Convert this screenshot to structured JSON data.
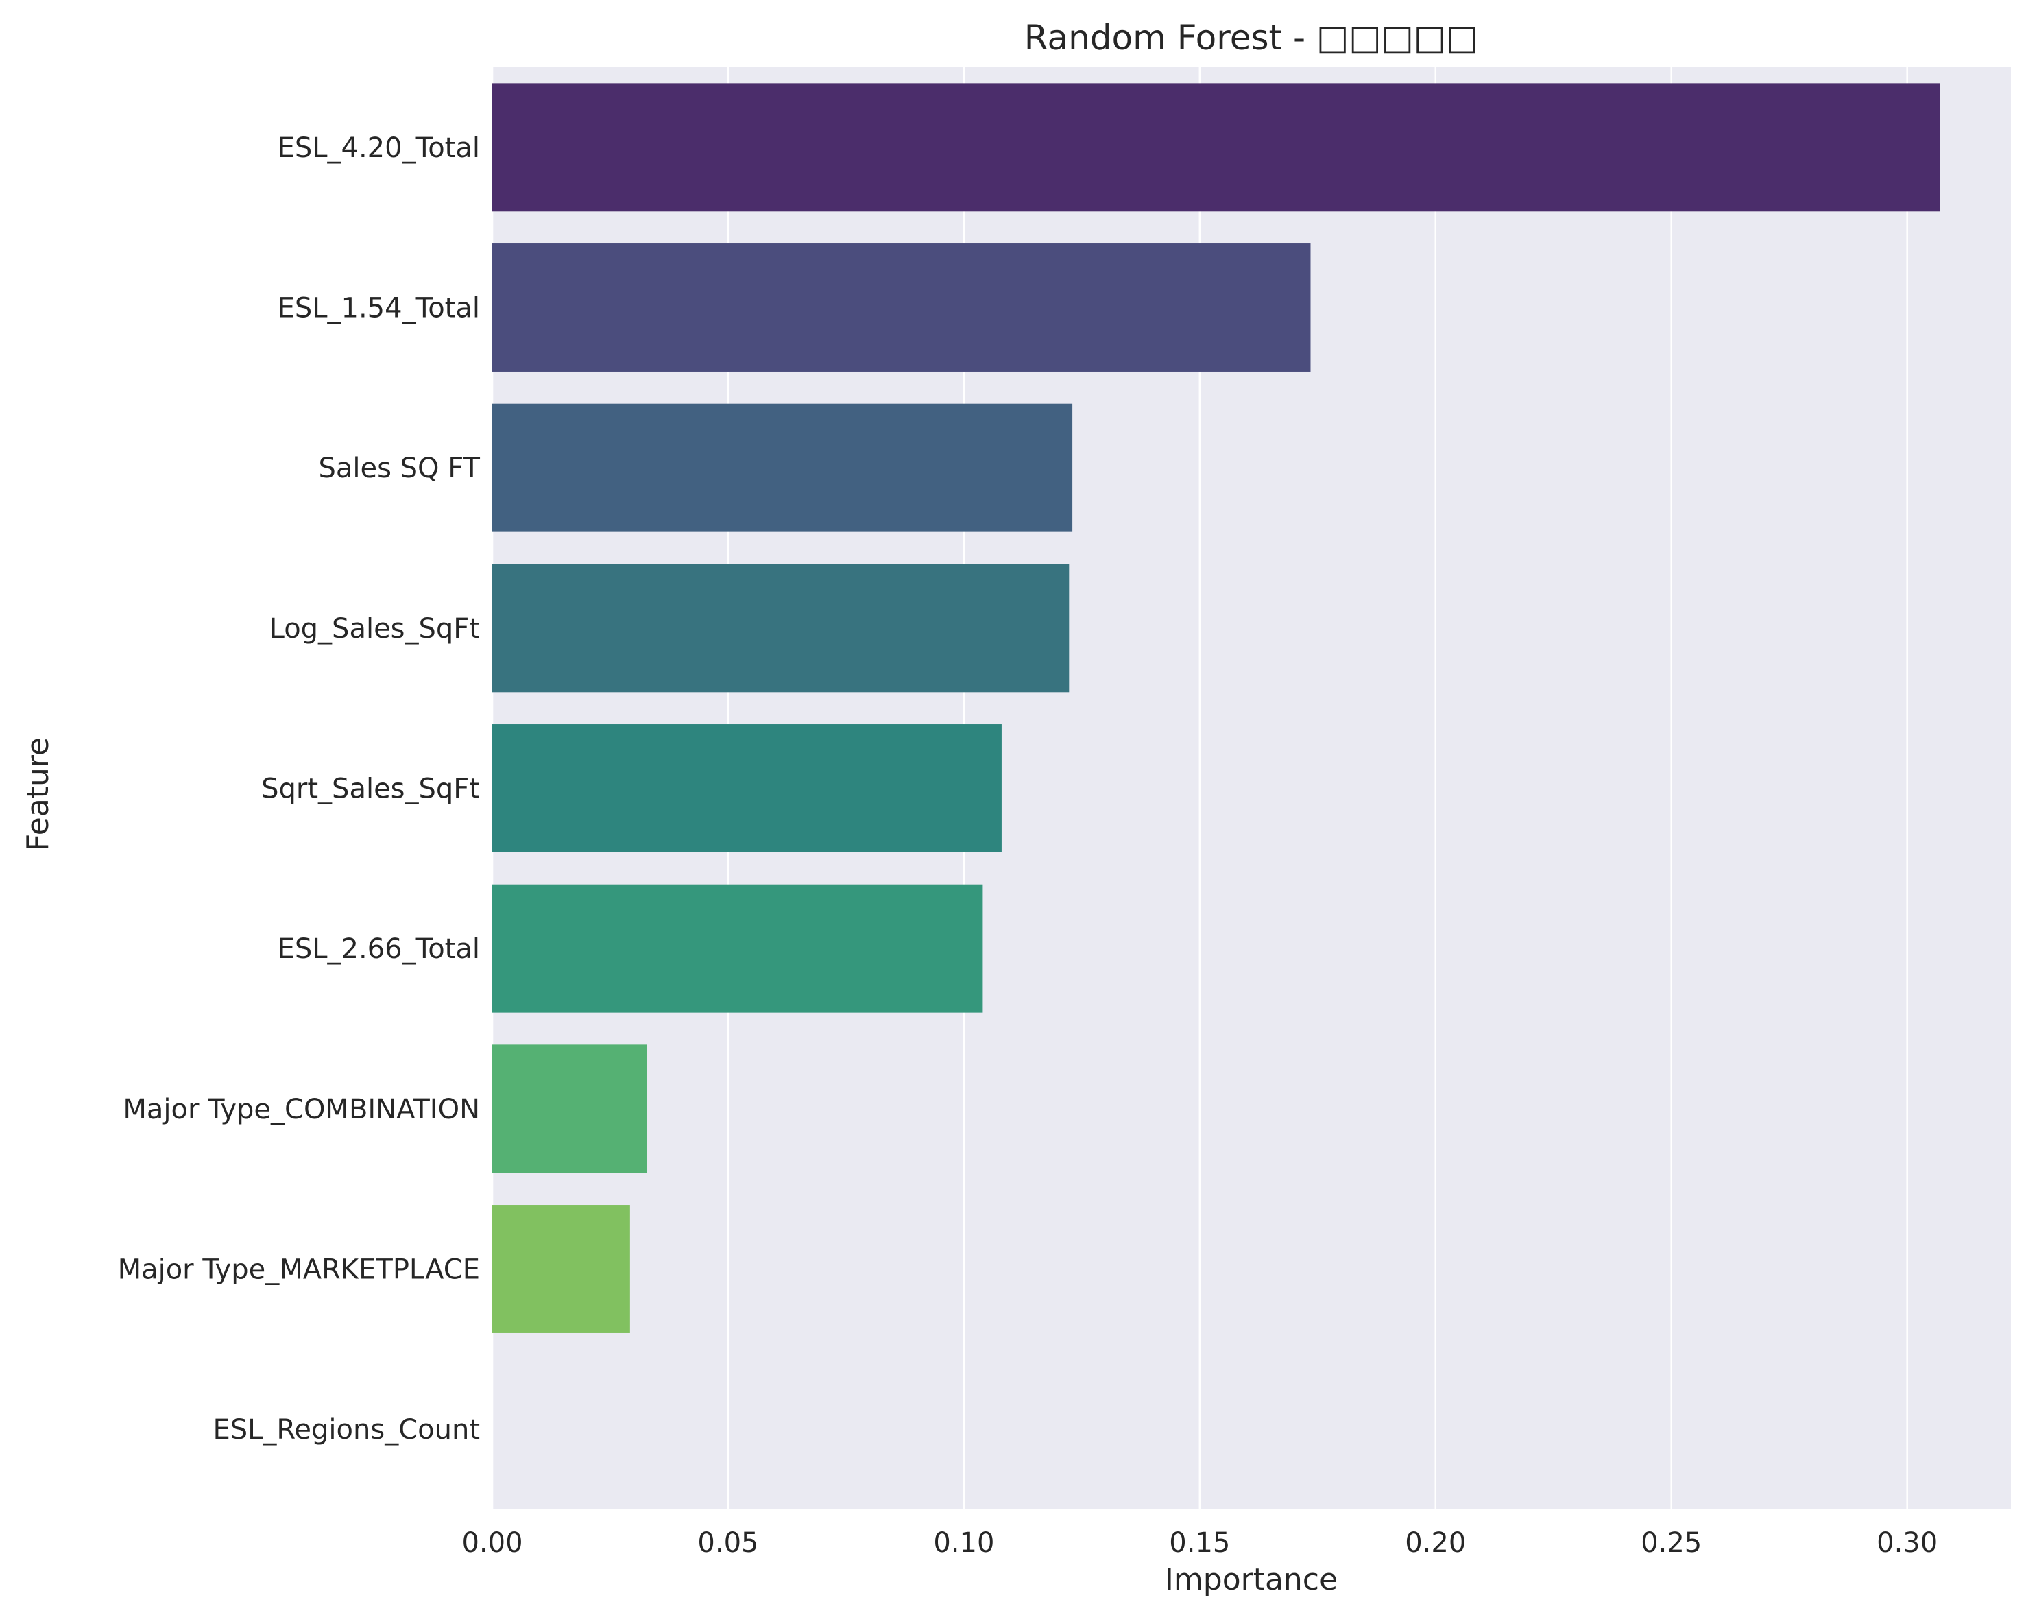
{
  "chart_data": {
    "type": "bar",
    "orientation": "horizontal",
    "title": "Random Forest - □□□□□",
    "xlabel": "Importance",
    "ylabel": "Feature",
    "categories": [
      "ESL_4.20_Total",
      "ESL_1.54_Total",
      "Sales SQ FT",
      "Log_Sales_SqFt",
      "Sqrt_Sales_SqFt",
      "ESL_2.66_Total",
      "Major Type_COMBINATION",
      "Major Type_MARKETPLACE",
      "ESL_Regions_Count"
    ],
    "values": [
      0.307,
      0.1735,
      0.123,
      0.1223,
      0.108,
      0.104,
      0.0328,
      0.0292,
      0.0
    ],
    "colors": [
      "#4b2d6b",
      "#4b4d7d",
      "#426181",
      "#38737f",
      "#2e857e",
      "#35977c",
      "#55b173",
      "#81c160",
      "#b5d94a"
    ],
    "xlim": [
      0,
      0.322
    ],
    "xticks": [
      "0.00",
      "0.05",
      "0.10",
      "0.15",
      "0.20",
      "0.25",
      "0.30"
    ],
    "xtick_values": [
      0,
      0.05,
      0.1,
      0.15,
      0.2,
      0.25,
      0.3
    ],
    "grid": true,
    "background": "#eaeaf2",
    "legend": "none"
  }
}
